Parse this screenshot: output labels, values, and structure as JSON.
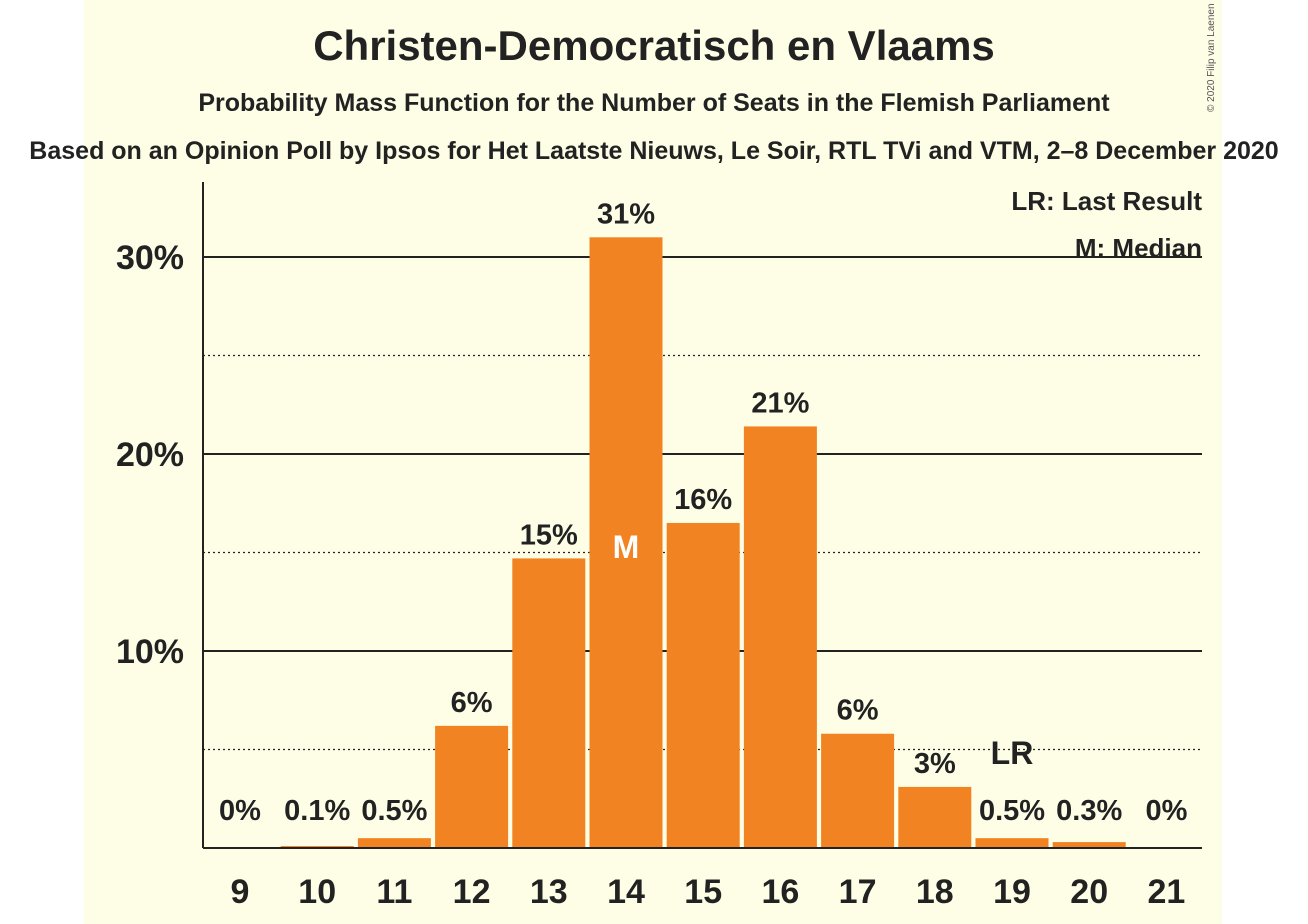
{
  "chart_data": {
    "type": "bar",
    "title": "Christen-Democratisch en Vlaams",
    "subtitle": "Probability Mass Function for the Number of Seats in the Flemish Parliament",
    "source": "Based on an Opinion Poll by Ipsos for Het Laatste Nieuws, Le Soir, RTL TVi and VTM, 2–8 December 2020",
    "copyright": "© 2020 Filip van Laenen",
    "categories": [
      "9",
      "10",
      "11",
      "12",
      "13",
      "14",
      "15",
      "16",
      "17",
      "18",
      "19",
      "20",
      "21"
    ],
    "values": [
      0,
      0.1,
      0.5,
      6.2,
      14.7,
      31.0,
      16.5,
      21.4,
      5.8,
      3.1,
      0.5,
      0.3,
      0
    ],
    "data_labels": [
      "0%",
      "0.1%",
      "0.5%",
      "6%",
      "15%",
      "31%",
      "16%",
      "21%",
      "6%",
      "3%",
      "0.5%",
      "0.3%",
      "0%"
    ],
    "ylim": [
      0,
      33
    ],
    "yticks": [
      {
        "value": 10,
        "label": "10%"
      },
      {
        "value": 20,
        "label": "20%"
      },
      {
        "value": 30,
        "label": "30%"
      }
    ],
    "minor_gridlines": [
      5,
      15,
      25
    ],
    "median_category": "14",
    "median_marker": "M",
    "last_result_category": "19",
    "last_result_marker": "LR",
    "legend": {
      "placement": "top-right",
      "last_result": "LR: Last Result",
      "median": "M: Median"
    },
    "colors": {
      "bar": "#f28322",
      "background": "#fefde6",
      "text": "#222222",
      "median_text": "#ffffff"
    }
  }
}
